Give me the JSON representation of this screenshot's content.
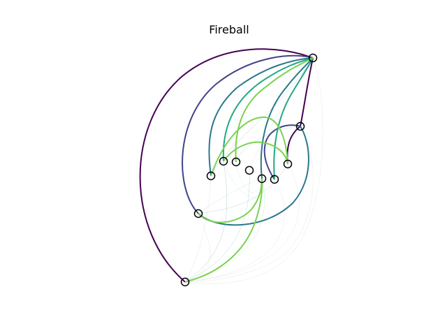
{
  "figure": {
    "title": "Fireball"
  },
  "palette": {
    "dark_purple": "#440154",
    "indigo": "#414487",
    "teal_blue": "#2a788e",
    "teal_green": "#22a884",
    "light_green": "#7ad151",
    "faint_gray": "#bbbbbb"
  }
}
